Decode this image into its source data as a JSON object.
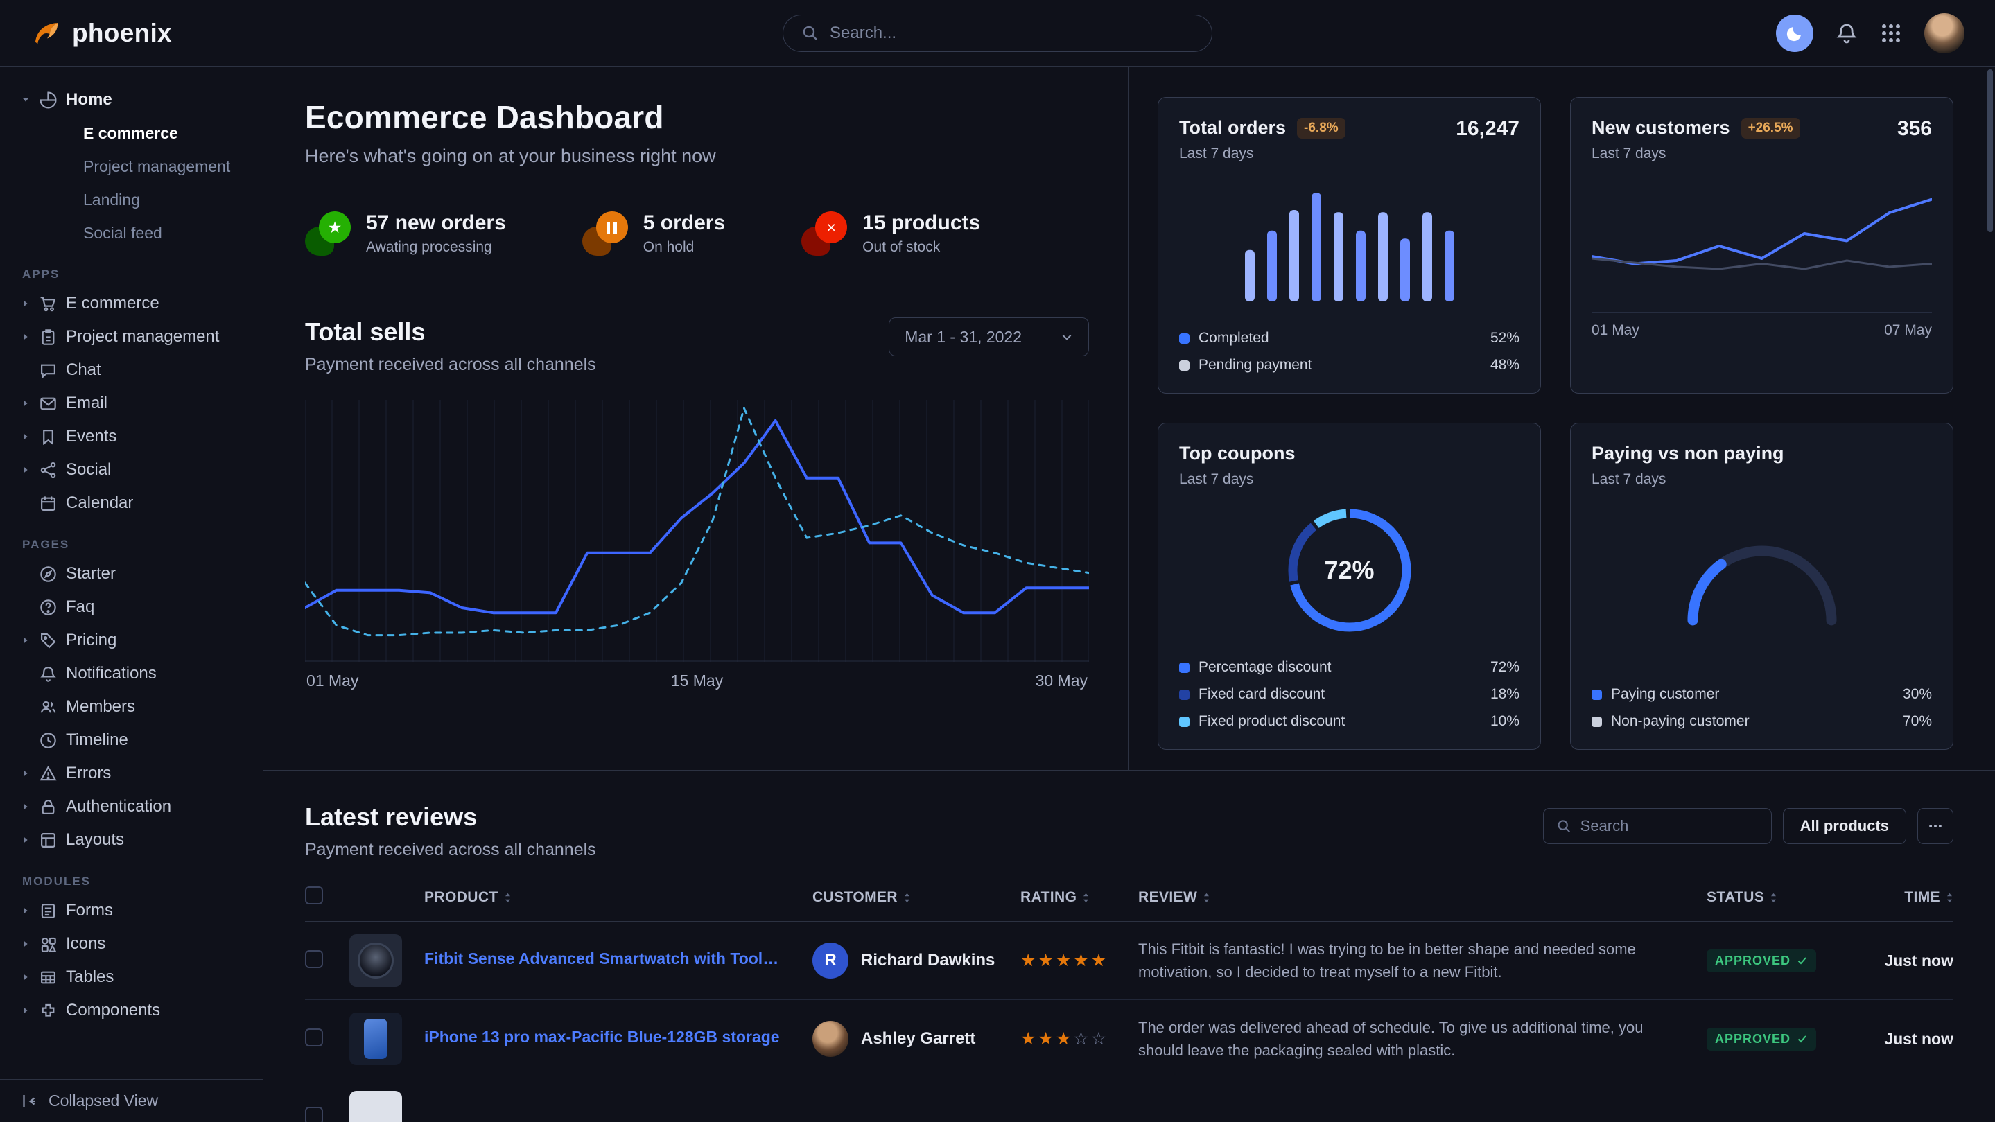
{
  "brand": {
    "name": "phoenix"
  },
  "topbar": {
    "search_placeholder": "Search..."
  },
  "sidebar": {
    "home": {
      "label": "Home",
      "icon": "pie",
      "children": [
        {
          "label": "E commerce",
          "active": true
        },
        {
          "label": "Project management",
          "active": false
        },
        {
          "label": "Landing",
          "active": false
        },
        {
          "label": "Social feed",
          "active": false
        }
      ]
    },
    "sections": [
      {
        "label": "APPS",
        "items": [
          {
            "label": "E commerce",
            "icon": "cart",
            "caret": true
          },
          {
            "label": "Project management",
            "icon": "clipboard",
            "caret": true
          },
          {
            "label": "Chat",
            "icon": "chat",
            "caret": false
          },
          {
            "label": "Email",
            "icon": "mail",
            "caret": true
          },
          {
            "label": "Events",
            "icon": "bookmark",
            "caret": true
          },
          {
            "label": "Social",
            "icon": "share",
            "caret": true
          },
          {
            "label": "Calendar",
            "icon": "calendar",
            "caret": false
          }
        ]
      },
      {
        "label": "PAGES",
        "items": [
          {
            "label": "Starter",
            "icon": "compass",
            "caret": false
          },
          {
            "label": "Faq",
            "icon": "question",
            "caret": false
          },
          {
            "label": "Pricing",
            "icon": "tag",
            "caret": true
          },
          {
            "label": "Notifications",
            "icon": "bell",
            "caret": false
          },
          {
            "label": "Members",
            "icon": "users",
            "caret": false
          },
          {
            "label": "Timeline",
            "icon": "clock",
            "caret": false
          },
          {
            "label": "Errors",
            "icon": "alert",
            "caret": true
          },
          {
            "label": "Authentication",
            "icon": "lock",
            "caret": true
          },
          {
            "label": "Layouts",
            "icon": "layout",
            "caret": true
          }
        ]
      },
      {
        "label": "MODULES",
        "items": [
          {
            "label": "Forms",
            "icon": "form",
            "caret": true
          },
          {
            "label": "Icons",
            "icon": "icons",
            "caret": true
          },
          {
            "label": "Tables",
            "icon": "table",
            "caret": true
          },
          {
            "label": "Components",
            "icon": "puzzle",
            "caret": true
          }
        ]
      }
    ],
    "footer": {
      "label": "Collapsed View"
    }
  },
  "page": {
    "title": "Ecommerce Dashboard",
    "subtitle": "Here's what's going on at your business right now"
  },
  "stats": [
    {
      "value": "57 new orders",
      "caption": "Awating processing",
      "icon": "star",
      "color": "#25b003"
    },
    {
      "value": "5 orders",
      "caption": "On hold",
      "icon": "pause",
      "color": "#e5780b"
    },
    {
      "value": "15 products",
      "caption": "Out of stock",
      "icon": "x",
      "color": "#ed2000"
    }
  ],
  "total_sells": {
    "title": "Total sells",
    "subtitle": "Payment received across all channels",
    "date_range": "Mar 1 - 31, 2022",
    "x_labels": [
      "01 May",
      "15 May",
      "30 May"
    ]
  },
  "cards": {
    "total_orders": {
      "title": "Total orders",
      "badge": "-6.8%",
      "period": "Last 7 days",
      "value": "16,247",
      "legend": [
        {
          "label": "Completed",
          "value": "52%",
          "color": "#3874ff"
        },
        {
          "label": "Pending payment",
          "value": "48%",
          "color": "#cbd0dd"
        }
      ]
    },
    "new_customers": {
      "title": "New customers",
      "badge": "+26.5%",
      "period": "Last 7 days",
      "value": "356",
      "x_labels": [
        "01 May",
        "07 May"
      ]
    },
    "top_coupons": {
      "title": "Top coupons",
      "period": "Last 7 days",
      "center_label": "72%",
      "legend": [
        {
          "label": "Percentage discount",
          "value": "72%",
          "color": "#3874ff"
        },
        {
          "label": "Fixed card discount",
          "value": "18%",
          "color": "#2242a4"
        },
        {
          "label": "Fixed product discount",
          "value": "10%",
          "color": "#60c6ff"
        }
      ]
    },
    "paying_vs_non_paying": {
      "title": "Paying vs non paying",
      "period": "Last 7 days",
      "legend": [
        {
          "label": "Paying customer",
          "value": "30%",
          "color": "#3874ff"
        },
        {
          "label": "Non-paying customer",
          "value": "70%",
          "color": "#cbd0dd"
        }
      ]
    }
  },
  "reviews": {
    "title": "Latest reviews",
    "subtitle": "Payment received across all channels",
    "search_placeholder": "Search",
    "all_products_label": "All products",
    "columns": [
      "PRODUCT",
      "CUSTOMER",
      "RATING",
      "REVIEW",
      "STATUS",
      "TIME"
    ],
    "rows": [
      {
        "product": "Fitbit Sense Advanced Smartwatch with Tools fo...",
        "thumb": "watch",
        "customer": "Richard Dawkins",
        "avatar_type": "initial",
        "avatar_text": "R",
        "rating": 5,
        "review": "This Fitbit is fantastic! I was trying to be in better shape and needed some motivation, so I decided to treat myself to a new Fitbit.",
        "status": "APPROVED",
        "time": "Just now"
      },
      {
        "product": "iPhone 13 pro max-Pacific Blue-128GB storage",
        "thumb": "phone",
        "customer": "Ashley Garrett",
        "avatar_type": "photo",
        "avatar_text": "",
        "rating": 3,
        "review": "The order was delivered ahead of schedule. To give us additional time, you should leave the packaging sealed with plastic.",
        "status": "APPROVED",
        "time": "Just now"
      },
      {
        "product": "",
        "thumb": "light",
        "customer": "",
        "avatar_type": "none",
        "avatar_text": "",
        "rating": 0,
        "review": "",
        "status": "",
        "time": ""
      }
    ]
  },
  "chart_data": [
    {
      "id": "total-sells",
      "type": "line",
      "title": "Total sells",
      "x_labels": [
        "01 May",
        "15 May",
        "30 May"
      ],
      "ylim": [
        0,
        100
      ],
      "grid": "vertical",
      "series": [
        {
          "name": "sells-primary",
          "style": "solid",
          "color": "#3d66ff",
          "values": [
            20,
            27,
            27,
            27,
            26,
            20,
            18,
            18,
            18,
            42,
            42,
            42,
            56,
            66,
            78,
            95,
            72,
            72,
            46,
            46,
            25,
            18,
            18,
            28,
            28,
            28
          ]
        },
        {
          "name": "sells-secondary",
          "style": "dashed",
          "color": "#45b2e8",
          "values": [
            30,
            13,
            9,
            9,
            10,
            10,
            11,
            10,
            11,
            11,
            13,
            18,
            30,
            55,
            100,
            72,
            48,
            50,
            53,
            57,
            50,
            45,
            42,
            38,
            36,
            34
          ]
        }
      ]
    },
    {
      "id": "total-orders",
      "type": "bar",
      "values": [
        45,
        62,
        80,
        95,
        78,
        62,
        78,
        55,
        78,
        62
      ],
      "colors": [
        "#9db4ff",
        "#6d8dff"
      ],
      "ylim": [
        0,
        100
      ]
    },
    {
      "id": "new-customers",
      "type": "line",
      "x_labels": [
        "01 May",
        "07 May"
      ],
      "ylim": [
        0,
        100
      ],
      "series": [
        {
          "name": "customers-new",
          "style": "solid",
          "color": "#4f79ff",
          "values": [
            40,
            33,
            36,
            50,
            38,
            62,
            55,
            82,
            95
          ]
        },
        {
          "name": "customers-baseline",
          "style": "solid",
          "color": "#434b63",
          "values": [
            38,
            34,
            30,
            28,
            33,
            28,
            36,
            30,
            33
          ]
        }
      ]
    },
    {
      "id": "top-coupons",
      "type": "pie",
      "center_label": "72%",
      "segments": [
        {
          "label": "Percentage discount",
          "value": 72,
          "color": "#3874ff"
        },
        {
          "label": "Fixed card discount",
          "value": 18,
          "color": "#2242a4"
        },
        {
          "label": "Fixed product discount",
          "value": 10,
          "color": "#60c6ff"
        }
      ]
    },
    {
      "id": "paying-gauge",
      "type": "gauge",
      "value": 30,
      "color": "#3874ff",
      "track_color": "#252e49",
      "segments": [
        {
          "label": "Paying customer",
          "value": 30
        },
        {
          "label": "Non-paying customer",
          "value": 70
        }
      ]
    }
  ]
}
